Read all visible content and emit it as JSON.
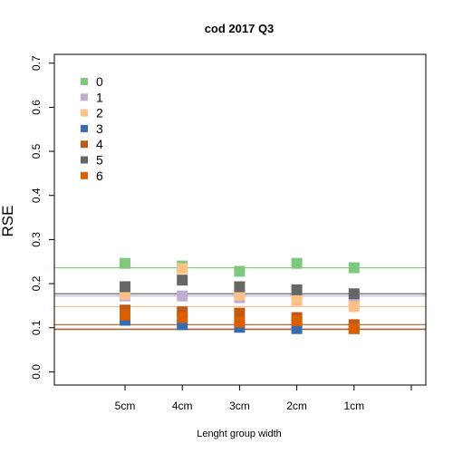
{
  "chart_data": {
    "type": "scatter",
    "title": "cod 2017 Q3",
    "xlabel": "Lenght group width",
    "ylabel": "RSE",
    "categories": [
      "5cm",
      "4cm",
      "3cm",
      "2cm",
      "1cm"
    ],
    "ylim": [
      -0.03,
      0.72
    ],
    "yticks": [
      "0.0",
      "0.1",
      "0.2",
      "0.3",
      "0.4",
      "0.5",
      "0.6",
      "0.7"
    ],
    "legend_position": "top-left",
    "series": [
      {
        "name": "0",
        "color": "#7fc97f",
        "values": [
          0.246,
          0.24,
          0.228,
          0.246,
          0.236
        ],
        "reference": 0.236
      },
      {
        "name": "1",
        "color": "#beaed4",
        "values": [
          0.172,
          0.172,
          0.168,
          0.168,
          0.17
        ],
        "reference": 0.172
      },
      {
        "name": "2",
        "color": "#fdc086",
        "values": [
          0.176,
          0.234,
          0.174,
          0.162,
          0.148
        ],
        "reference": 0.148
      },
      {
        "name": "3",
        "color": "#386cb0",
        "values": [
          0.117,
          0.107,
          0.101,
          0.098,
          0.098
        ],
        "reference": 0.097
      },
      {
        "name": "4",
        "color": "#bf5b17",
        "values": [
          0.14,
          0.136,
          0.133,
          0.123,
          0.107
        ],
        "reference": 0.107
      },
      {
        "name": "5",
        "color": "#666666",
        "values": [
          0.193,
          0.208,
          0.193,
          0.186,
          0.177
        ],
        "reference": 0.177
      },
      {
        "name": "6",
        "color": "#d95f02",
        "values": [
          0.129,
          0.123,
          0.113,
          0.116,
          0.098
        ],
        "reference": 0.096
      }
    ]
  }
}
